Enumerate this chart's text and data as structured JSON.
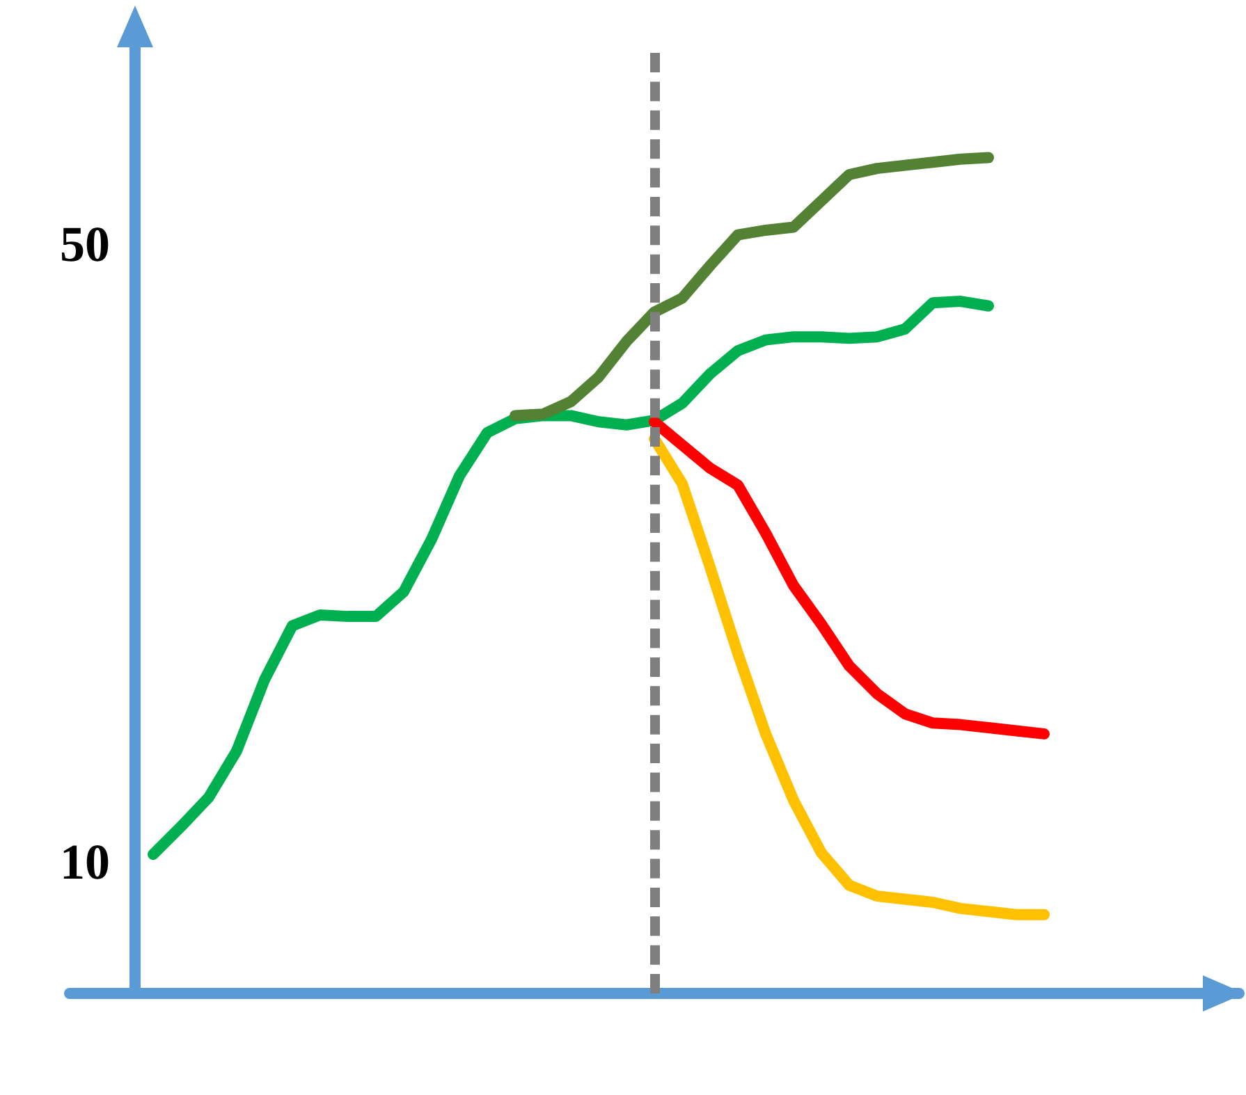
{
  "chart_data": {
    "type": "line",
    "marker": "none",
    "tick_labels": "y",
    "grid": false,
    "categories": [
      null,
      null,
      null,
      null,
      null,
      null,
      null,
      null,
      null,
      null,
      null,
      null,
      null,
      null,
      null,
      null,
      null,
      null,
      null,
      null,
      null,
      null,
      null,
      null,
      null,
      null,
      null,
      null,
      null,
      null,
      null,
      null,
      null,
      null,
      null,
      null,
      null,
      null,
      null,
      null,
      null,
      null,
      null
    ],
    "ylim": [
      1.5,
      64
    ],
    "yticks": [
      10,
      50
    ],
    "series": [
      {
        "color": "#00b050",
        "values": [
          null,
          null,
          null,
          10.5,
          12.3,
          14.2,
          17.2,
          21.8,
          25.3,
          26.0,
          25.9,
          25.9,
          27.5,
          30.9,
          35.0,
          37.8,
          38.7,
          38.9,
          38.9,
          38.5,
          38.3,
          38.6,
          39.7,
          41.6,
          43.1,
          43.8,
          44.0,
          44.0,
          43.9,
          44.0,
          44.5,
          46.2,
          46.3,
          46.0,
          null,
          null,
          null,
          null,
          null,
          null,
          null,
          null,
          null
        ]
      },
      {
        "color": "#548235",
        "values": [
          null,
          null,
          null,
          null,
          null,
          null,
          null,
          null,
          null,
          null,
          null,
          null,
          null,
          null,
          null,
          null,
          38.9,
          39.0,
          39.8,
          41.4,
          43.7,
          45.6,
          46.5,
          48.6,
          50.6,
          50.9,
          51.1,
          52.8,
          54.5,
          54.9,
          55.1,
          55.3,
          55.5,
          55.6,
          null,
          null,
          null,
          null,
          null,
          null,
          null,
          null,
          null
        ]
      },
      {
        "color": "#ff0000",
        "values": [
          null,
          null,
          null,
          null,
          null,
          null,
          null,
          null,
          null,
          null,
          null,
          null,
          null,
          null,
          null,
          null,
          null,
          null,
          null,
          null,
          null,
          38.5,
          37.0,
          35.5,
          34.4,
          31.3,
          27.9,
          25.4,
          22.7,
          20.9,
          19.6,
          19.0,
          18.9,
          18.7,
          18.5,
          18.3,
          null,
          null,
          null,
          null,
          null,
          null,
          null
        ]
      },
      {
        "color": "#ffc000",
        "values": [
          null,
          null,
          null,
          null,
          null,
          null,
          null,
          null,
          null,
          null,
          null,
          null,
          null,
          null,
          null,
          null,
          null,
          null,
          null,
          null,
          null,
          37.4,
          34.5,
          29.1,
          23.5,
          18.3,
          14.0,
          10.6,
          8.5,
          7.8,
          7.6,
          7.4,
          7.0,
          6.8,
          6.6,
          6.6,
          null,
          null,
          null,
          null,
          null,
          null,
          null
        ]
      }
    ]
  }
}
